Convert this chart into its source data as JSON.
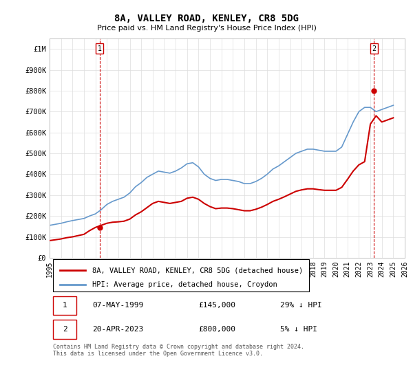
{
  "title": "8A, VALLEY ROAD, KENLEY, CR8 5DG",
  "subtitle": "Price paid vs. HM Land Registry's House Price Index (HPI)",
  "ylabel_top": "£1M",
  "ylim": [
    0,
    1050000
  ],
  "xlim": [
    1995,
    2026
  ],
  "yticks": [
    0,
    100000,
    200000,
    300000,
    400000,
    500000,
    600000,
    700000,
    800000,
    900000,
    1000000
  ],
  "ytick_labels": [
    "£0",
    "£100K",
    "£200K",
    "£300K",
    "£400K",
    "£500K",
    "£600K",
    "£700K",
    "£800K",
    "£900K",
    "£1M"
  ],
  "xticks": [
    1995,
    1996,
    1997,
    1998,
    1999,
    2000,
    2001,
    2002,
    2003,
    2004,
    2005,
    2006,
    2007,
    2008,
    2009,
    2010,
    2011,
    2012,
    2013,
    2014,
    2015,
    2016,
    2017,
    2018,
    2019,
    2020,
    2021,
    2022,
    2023,
    2024,
    2025,
    2026
  ],
  "hpi_x": [
    1995,
    1995.5,
    1996,
    1996.5,
    1997,
    1997.5,
    1998,
    1998.5,
    1999,
    1999.5,
    2000,
    2000.5,
    2001,
    2001.5,
    2002,
    2002.5,
    2003,
    2003.5,
    2004,
    2004.5,
    2005,
    2005.5,
    2006,
    2006.5,
    2007,
    2007.5,
    2008,
    2008.5,
    2009,
    2009.5,
    2010,
    2010.5,
    2011,
    2011.5,
    2012,
    2012.5,
    2013,
    2013.5,
    2014,
    2014.5,
    2015,
    2015.5,
    2016,
    2016.5,
    2017,
    2017.5,
    2018,
    2018.5,
    2019,
    2019.5,
    2020,
    2020.5,
    2021,
    2021.5,
    2022,
    2022.5,
    2023,
    2023.5,
    2024,
    2024.5,
    2025
  ],
  "hpi_y": [
    155000,
    160000,
    165000,
    172000,
    178000,
    183000,
    188000,
    200000,
    210000,
    230000,
    255000,
    270000,
    280000,
    290000,
    310000,
    340000,
    360000,
    385000,
    400000,
    415000,
    410000,
    405000,
    415000,
    430000,
    450000,
    455000,
    435000,
    400000,
    380000,
    370000,
    375000,
    375000,
    370000,
    365000,
    355000,
    355000,
    365000,
    380000,
    400000,
    425000,
    440000,
    460000,
    480000,
    500000,
    510000,
    520000,
    520000,
    515000,
    510000,
    510000,
    510000,
    530000,
    590000,
    650000,
    700000,
    720000,
    720000,
    700000,
    710000,
    720000,
    730000
  ],
  "price_x": [
    1995,
    1995.5,
    1996,
    1996.5,
    1997,
    1997.5,
    1998,
    1998.5,
    1999,
    1999.5,
    2000,
    2000.5,
    2001,
    2001.5,
    2002,
    2002.5,
    2003,
    2003.5,
    2004,
    2004.5,
    2005,
    2005.5,
    2006,
    2006.5,
    2007,
    2007.5,
    2008,
    2008.5,
    2009,
    2009.5,
    2010,
    2010.5,
    2011,
    2011.5,
    2012,
    2012.5,
    2013,
    2013.5,
    2014,
    2014.5,
    2015,
    2015.5,
    2016,
    2016.5,
    2017,
    2017.5,
    2018,
    2018.5,
    2019,
    2019.5,
    2020,
    2020.5,
    2021,
    2021.5,
    2022,
    2022.5,
    2023,
    2023.5,
    2024,
    2024.5,
    2025
  ],
  "price_y": [
    82000,
    86000,
    90000,
    96000,
    100000,
    106000,
    112000,
    130000,
    145000,
    155000,
    165000,
    170000,
    172000,
    175000,
    185000,
    205000,
    220000,
    240000,
    260000,
    270000,
    265000,
    260000,
    265000,
    270000,
    285000,
    290000,
    280000,
    260000,
    245000,
    235000,
    238000,
    238000,
    235000,
    230000,
    225000,
    225000,
    232000,
    242000,
    255000,
    270000,
    280000,
    292000,
    305000,
    318000,
    325000,
    330000,
    330000,
    326000,
    323000,
    323000,
    323000,
    337000,
    375000,
    415000,
    445000,
    460000,
    640000,
    680000,
    650000,
    660000,
    670000
  ],
  "sale1_x": 1999.37,
  "sale1_y": 145000,
  "sale1_label": "1",
  "sale2_x": 2023.31,
  "sale2_y": 800000,
  "sale2_label": "2",
  "line_color_price": "#cc0000",
  "line_color_hpi": "#6699cc",
  "sale_marker_color": "#cc0000",
  "sale_box_color": "#cc0000",
  "grid_color": "#dddddd",
  "bg_color": "#ffffff",
  "legend_label_price": "8A, VALLEY ROAD, KENLEY, CR8 5DG (detached house)",
  "legend_label_hpi": "HPI: Average price, detached house, Croydon",
  "annotation1_date": "07-MAY-1999",
  "annotation1_price": "£145,000",
  "annotation1_hpi": "29% ↓ HPI",
  "annotation2_date": "20-APR-2023",
  "annotation2_price": "£800,000",
  "annotation2_hpi": "5% ↓ HPI",
  "footer": "Contains HM Land Registry data © Crown copyright and database right 2024.\nThis data is licensed under the Open Government Licence v3.0."
}
